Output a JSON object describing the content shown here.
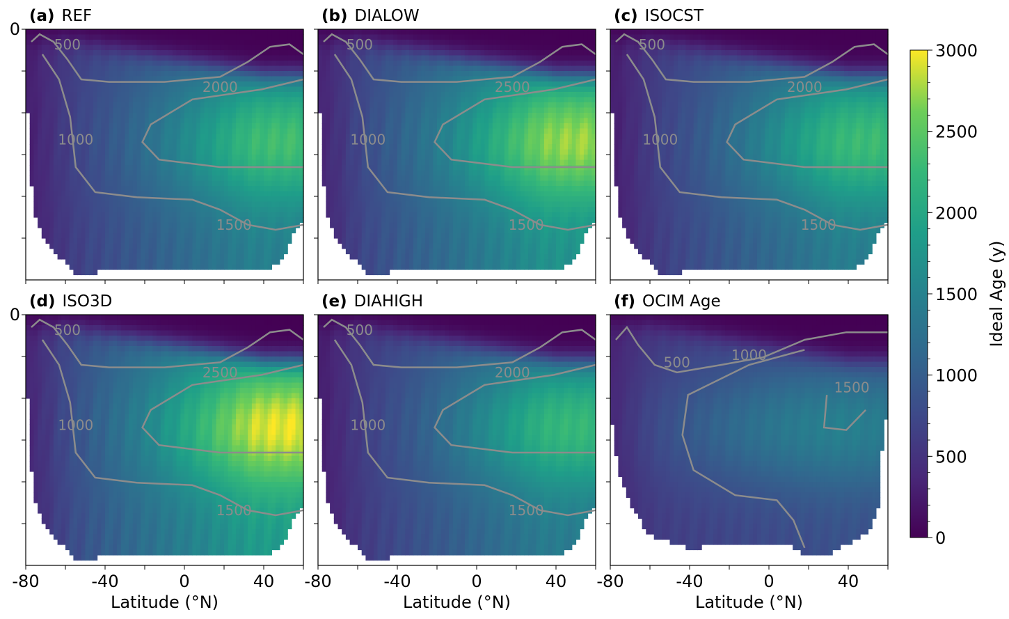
{
  "figure": {
    "colorbar": {
      "label": "Ideal Age (y)",
      "range": [
        0,
        3000
      ],
      "ticks": [
        "0",
        "500",
        "1000",
        "1500",
        "2000",
        "2500",
        "3000"
      ],
      "colormap": "viridis"
    },
    "x_axis": {
      "label": "Latitude (°N)",
      "range": [
        -80,
        60
      ],
      "ticks": [
        "-80",
        "-40",
        "0",
        "40"
      ]
    },
    "y_axis": {
      "tick_label": "0"
    },
    "contour_color": "#8c8c8c",
    "land_color": "#ffffff"
  },
  "chart_data": [
    {
      "type": "heatmap",
      "label": "(a)",
      "title": "REF",
      "max_age": 2350,
      "contour_labels": [
        "500",
        "1000",
        "1500",
        "2000"
      ]
    },
    {
      "type": "heatmap",
      "label": "(b)",
      "title": "DIALOW",
      "max_age": 2750,
      "contour_labels": [
        "500",
        "1000",
        "1500",
        "2500"
      ]
    },
    {
      "type": "heatmap",
      "label": "(c)",
      "title": "ISOCST",
      "max_age": 2300,
      "contour_labels": [
        "500",
        "1000",
        "1500",
        "2000"
      ]
    },
    {
      "type": "heatmap",
      "label": "(d)",
      "title": "ISO3D",
      "max_age": 2950,
      "contour_labels": [
        "500",
        "1000",
        "1500",
        "2500"
      ]
    },
    {
      "type": "heatmap",
      "label": "(e)",
      "title": "DIAHIGH",
      "max_age": 2250,
      "contour_labels": [
        "500",
        "1000",
        "1500",
        "2000"
      ]
    },
    {
      "type": "heatmap",
      "label": "(f)",
      "title": "OCIM Age",
      "max_age": 1620,
      "contour_labels": [
        "500",
        "1000",
        "1500"
      ]
    }
  ]
}
